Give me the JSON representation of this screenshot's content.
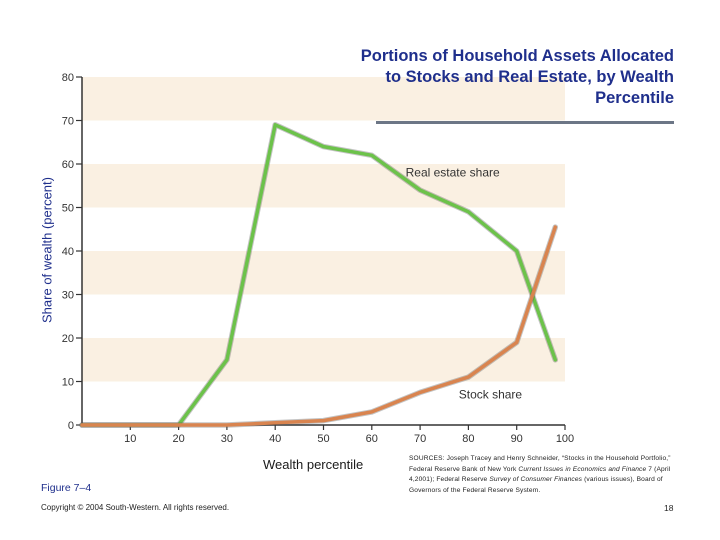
{
  "title": "Portions of Household Assets Allocated to Stocks and Real Estate, by Wealth Percentile",
  "figure_label": "Figure 7–4",
  "copyright": "Copyright © 2004 South-Western. All rights reserved.",
  "sources": {
    "s1": "SOURCES: Joseph Tracey and Henry Schneider, “Stocks in the Household Portfolio,” Federal Reserve Bank of New York ",
    "s2": "Current Issues in Economics and Finance",
    "s3": " 7 (April 4,2001); Federal Reserve ",
    "s4": "Survey of Consumer Finances",
    "s5": " (various issues), Board of Governors of the Federal Reserve System."
  },
  "page_number": "18",
  "chart_data": {
    "type": "line",
    "xlabel": "Wealth percentile",
    "ylabel": "Share of wealth (percent)",
    "xlim": [
      0,
      100
    ],
    "ylim": [
      0,
      80
    ],
    "x_ticks": [
      "10",
      "20",
      "30",
      "40",
      "50",
      "60",
      "70",
      "80",
      "90",
      "100"
    ],
    "y_ticks": [
      "0",
      "10",
      "20",
      "30",
      "40",
      "50",
      "60",
      "70",
      "80"
    ],
    "series": [
      {
        "name": "Real estate share",
        "color": "#6cc24a",
        "x": [
          0,
          20,
          30,
          40,
          50,
          60,
          70,
          80,
          90,
          98
        ],
        "y": [
          0,
          0,
          15,
          69,
          64,
          62,
          54,
          49,
          40,
          15
        ]
      },
      {
        "name": "Stock share",
        "color": "#d9844f",
        "x": [
          0,
          20,
          30,
          40,
          50,
          60,
          70,
          80,
          90,
          98
        ],
        "y": [
          0,
          0,
          0,
          0.5,
          1,
          3,
          7.5,
          11,
          19,
          45.5
        ]
      }
    ],
    "grid": "alternating horizontal bands",
    "band_color": "#faf0e2"
  }
}
